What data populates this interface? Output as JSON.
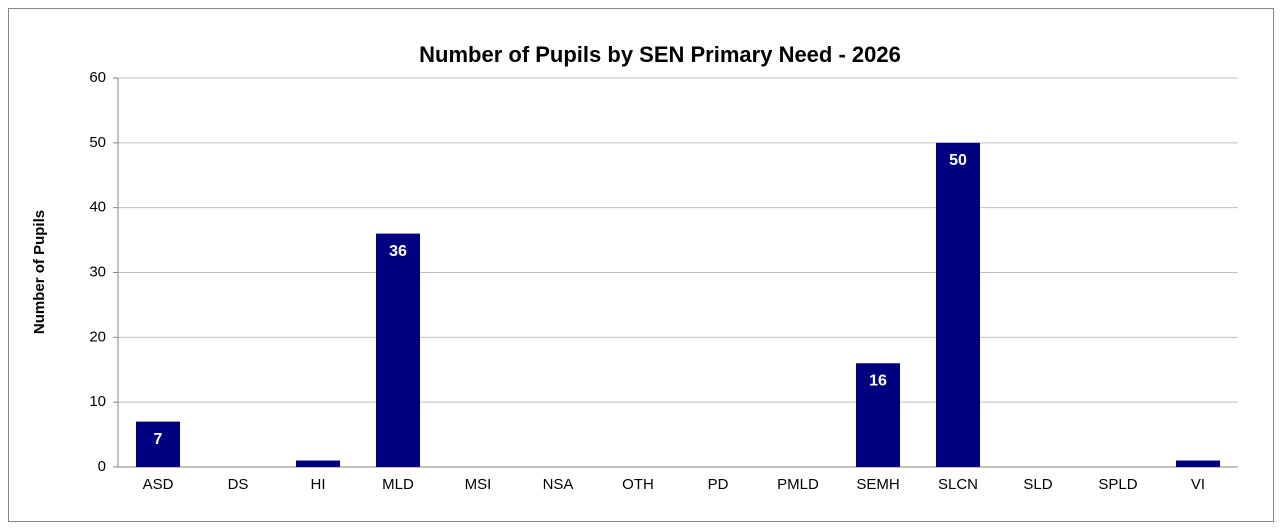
{
  "chart_data": {
    "type": "bar",
    "title": "Number of Pupils by SEN Primary Need - 2026",
    "y_label": "Number of Pupils",
    "categories": [
      "ASD",
      "DS",
      "HI",
      "MLD",
      "MSI",
      "NSA",
      "OTH",
      "PD",
      "PMLD",
      "SEMH",
      "SLCN",
      "SLD",
      "SPLD",
      "VI"
    ],
    "values": [
      7,
      0,
      1,
      36,
      0,
      0,
      0,
      0,
      0,
      16,
      50,
      0,
      0,
      1
    ],
    "value_labels": [
      7,
      null,
      null,
      36,
      null,
      null,
      null,
      null,
      null,
      16,
      50,
      null,
      null,
      null
    ],
    "color": "#000080",
    "ylim": [
      0,
      60
    ],
    "yticks": [
      0,
      10,
      20,
      30,
      40,
      50,
      60
    ],
    "grid": true
  }
}
